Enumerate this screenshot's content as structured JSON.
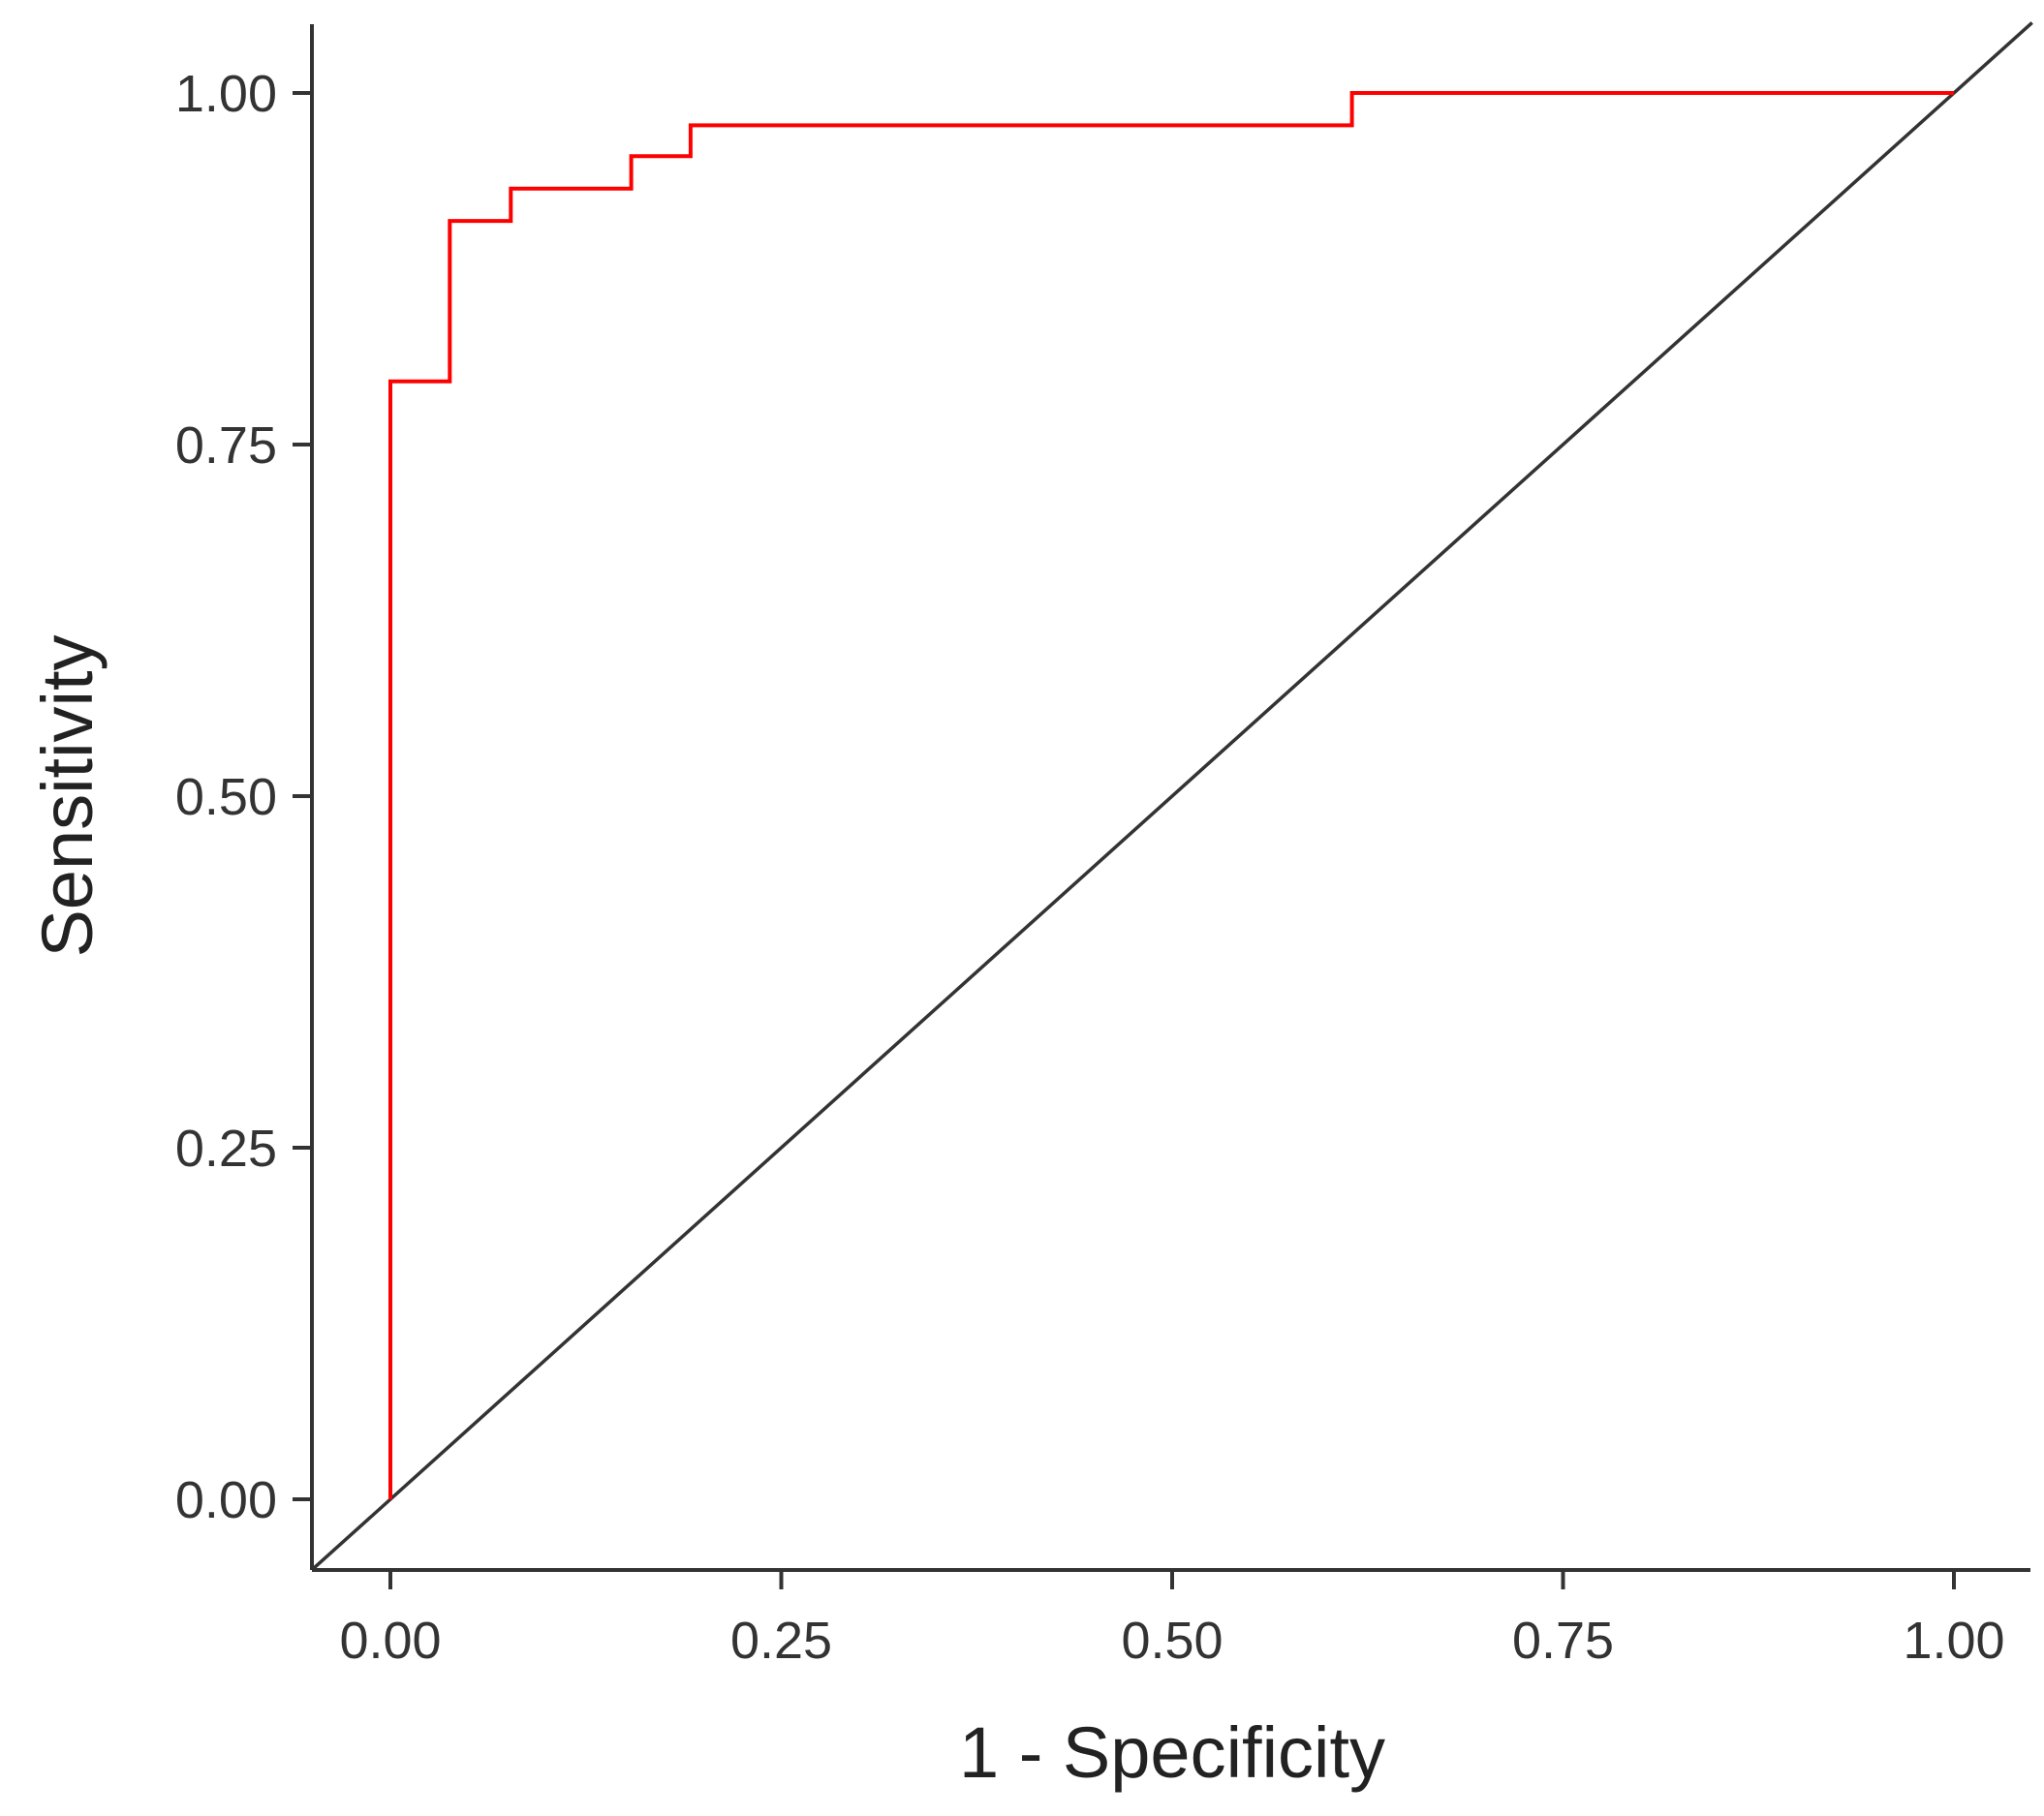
{
  "chart_data": {
    "type": "line",
    "title": "",
    "xlabel": "1 - Specificity",
    "ylabel": "Sensitivity",
    "xlim": [
      -0.05,
      1.05
    ],
    "ylim": [
      -0.05,
      1.05
    ],
    "x_ticks": [
      0,
      0.25,
      0.5,
      0.75,
      1
    ],
    "x_tick_labels": [
      "0.00",
      "0.25",
      "0.50",
      "0.75",
      "1.00"
    ],
    "y_ticks": [
      0,
      0.25,
      0.5,
      0.75,
      1
    ],
    "y_tick_labels": [
      "0.00",
      "0.25",
      "0.50",
      "0.75",
      "1.00"
    ],
    "grid": false,
    "legend": "none",
    "series": [
      {
        "style": "step",
        "color": "#ff0000",
        "x": [
          0,
          0,
          0.038,
          0.038,
          0.077,
          0.077,
          0.154,
          0.154,
          0.192,
          0.192,
          0.615,
          0.615,
          1.0
        ],
        "y": [
          0,
          0.795,
          0.795,
          0.909,
          0.909,
          0.932,
          0.932,
          0.955,
          0.955,
          0.977,
          0.977,
          1.0,
          1.0
        ]
      },
      {
        "style": "reference",
        "color": "#333333",
        "x": [
          -0.05,
          1.05
        ],
        "y": [
          -0.05,
          1.05
        ]
      }
    ]
  }
}
